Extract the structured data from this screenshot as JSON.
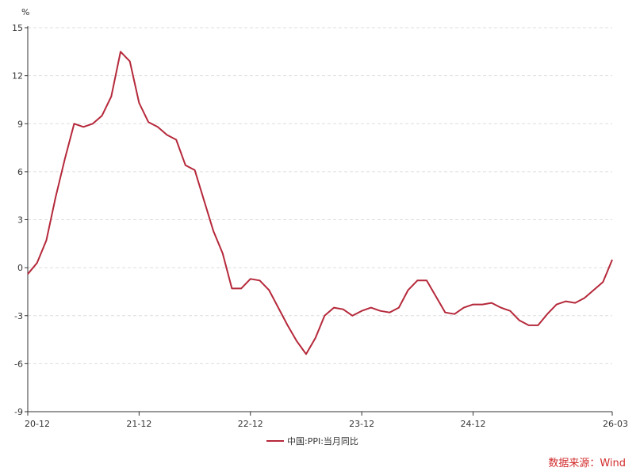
{
  "chart_data": {
    "type": "line",
    "unit_label": "%",
    "yticks": [
      15,
      12,
      9,
      6,
      3,
      0,
      -3,
      -6,
      -9
    ],
    "ylim": [
      -9,
      15
    ],
    "xticks": [
      "20-12",
      "21-12",
      "22-12",
      "23-12",
      "24-12",
      "26-03"
    ],
    "grid": true,
    "legend_position": "bottom-center",
    "series": [
      {
        "name": "中国:PPI:当月同比",
        "color": "#b5283a",
        "x": [
          "2020-12",
          "2021-01",
          "2021-02",
          "2021-03",
          "2021-04",
          "2021-05",
          "2021-06",
          "2021-07",
          "2021-08",
          "2021-09",
          "2021-10",
          "2021-11",
          "2021-12",
          "2022-01",
          "2022-02",
          "2022-03",
          "2022-04",
          "2022-05",
          "2022-06",
          "2022-07",
          "2022-08",
          "2022-09",
          "2022-10",
          "2022-11",
          "2022-12",
          "2023-01",
          "2023-02",
          "2023-03",
          "2023-04",
          "2023-05",
          "2023-06",
          "2023-07",
          "2023-08",
          "2023-09",
          "2023-10",
          "2023-11",
          "2023-12",
          "2024-01",
          "2024-02",
          "2024-03",
          "2024-04",
          "2024-05",
          "2024-06",
          "2024-07",
          "2024-08",
          "2024-09",
          "2024-10",
          "2024-11",
          "2024-12",
          "2025-01",
          "2025-02",
          "2025-03",
          "2025-04",
          "2025-05",
          "2025-06",
          "2025-07",
          "2025-08",
          "2025-09",
          "2025-10",
          "2025-11",
          "2025-12",
          "2026-01",
          "2026-02",
          "2026-03"
        ],
        "values": [
          -0.4,
          0.3,
          1.7,
          4.4,
          6.8,
          9.0,
          8.8,
          9.0,
          9.5,
          10.7,
          13.5,
          12.9,
          10.3,
          9.1,
          8.8,
          8.3,
          8.0,
          6.4,
          6.1,
          4.2,
          2.3,
          0.9,
          -1.3,
          -1.3,
          -0.7,
          -0.8,
          -1.4,
          -2.5,
          -3.6,
          -4.6,
          -5.4,
          -4.4,
          -3.0,
          -2.5,
          -2.6,
          -3.0,
          -2.7,
          -2.5,
          -2.7,
          -2.8,
          -2.5,
          -1.4,
          -0.8,
          -0.8,
          -1.8,
          -2.8,
          -2.9,
          -2.5,
          -2.3,
          -2.3,
          -2.2,
          -2.5,
          -2.7,
          -3.3,
          -3.6,
          -3.6,
          -2.9,
          -2.3,
          -2.1,
          -2.2,
          -1.9,
          -1.4,
          -0.9,
          0.5
        ]
      }
    ],
    "source": "数据来源：Wind",
    "source_color": "#d22c2c"
  }
}
